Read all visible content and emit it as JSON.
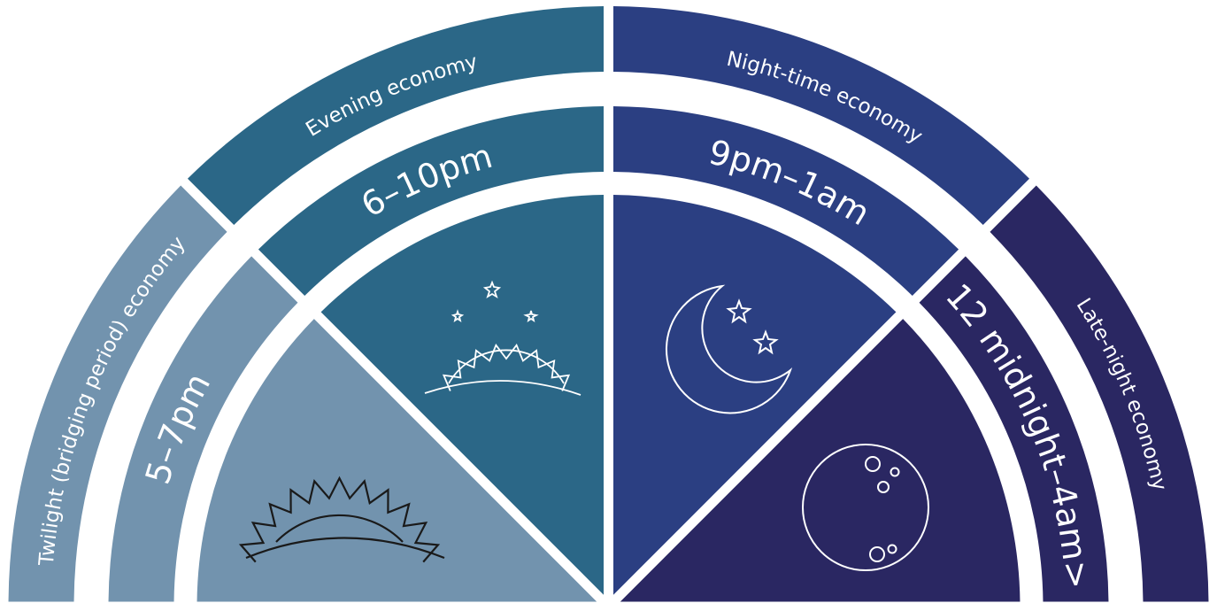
{
  "colors": {
    "twilight": "#7293ae",
    "evening": "#2b6787",
    "night": "#2b3f82",
    "late_night": "#2a2762",
    "background": "#ffffff",
    "icon_stroke": "#ffffff",
    "sun_stroke": "#1a1a1a"
  },
  "segments": [
    {
      "key": "twilight",
      "economy_label": "Twilight (bridging period) economy",
      "time_label": "5–7pm",
      "icon": "sunset-icon"
    },
    {
      "key": "evening",
      "economy_label": "Evening economy",
      "time_label": "6–10pm",
      "icon": "sundown-stars-icon"
    },
    {
      "key": "night",
      "economy_label": "Night-time economy",
      "time_label": "9pm–1am",
      "icon": "crescent-moon-stars-icon"
    },
    {
      "key": "late_night",
      "economy_label": "Late-night economy",
      "time_label": "12 midnight–4am>",
      "icon": "full-moon-icon"
    }
  ]
}
